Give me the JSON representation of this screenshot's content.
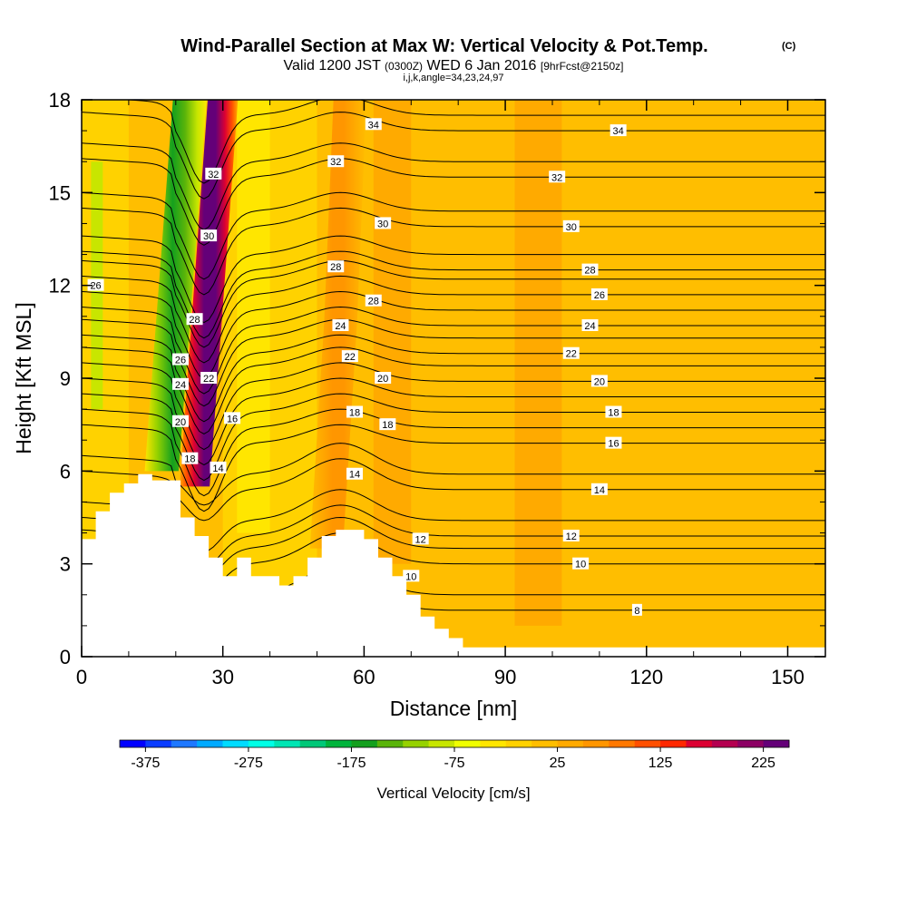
{
  "header": {
    "title": "Wind-Parallel Section at Max W: Vertical Velocity & Pot.Temp.",
    "copyright": "(C)",
    "valid_prefix": "Valid 1200 JST",
    "valid_utc": "(0300Z)",
    "valid_date": "WED 6 Jan 2016",
    "forecast": "[9hrFcst@2150z]",
    "params": "i,j,k,angle=34,23,24,97"
  },
  "chart_data": {
    "type": "heatmap",
    "xlabel": "Distance [nm]",
    "ylabel": "Height [Kft MSL]",
    "xlim": [
      0,
      158
    ],
    "ylim": [
      0,
      18
    ],
    "x_ticks": [
      "0",
      "30",
      "60",
      "90",
      "120",
      "150"
    ],
    "y_ticks": [
      "0",
      "3",
      "6",
      "9",
      "12",
      "15",
      "18"
    ],
    "x_tick_values": [
      0,
      30,
      60,
      90,
      120,
      150
    ],
    "y_tick_values": [
      0,
      3,
      6,
      9,
      12,
      15,
      18
    ],
    "grid": false,
    "fill_variable": "Vertical Velocity [cm/s]",
    "colorbar": {
      "label": "Vertical Velocity [cm/s]",
      "min": -400,
      "max": 250,
      "step": 25,
      "tick_labels": [
        "-375",
        "-275",
        "-175",
        "-75",
        "25",
        "125",
        "225"
      ],
      "tick_values": [
        -375,
        -275,
        -175,
        -75,
        25,
        125,
        225
      ],
      "colors": [
        "#0000ff",
        "#0a3cff",
        "#1e78ff",
        "#00aaff",
        "#00dcff",
        "#00ffe6",
        "#00e6b4",
        "#00c878",
        "#00b43c",
        "#14a01e",
        "#5ab40a",
        "#96d200",
        "#c8e600",
        "#f0ff00",
        "#ffe600",
        "#ffd200",
        "#ffbe00",
        "#ffaa00",
        "#ff9600",
        "#ff7800",
        "#ff5000",
        "#ff2800",
        "#dc0032",
        "#b40050",
        "#8c0064",
        "#640078"
      ]
    },
    "vertical_velocity_features": [
      {
        "name": "updraft core",
        "x_center": [
          24,
          27,
          30
        ],
        "y_range": [
          5.5,
          18
        ],
        "w_max": 250
      },
      {
        "name": "downdraft band",
        "x_center": [
          17,
          20,
          23
        ],
        "y_range": [
          6,
          18
        ],
        "w_min": -175
      },
      {
        "name": "secondary updraft",
        "x_center": [
          52,
          55,
          57
        ],
        "y_range": [
          3.5,
          18
        ],
        "w_max": 75
      }
    ],
    "terrain_profile": {
      "x": [
        0,
        3,
        3,
        6,
        6,
        9,
        9,
        12,
        12,
        15,
        15,
        19,
        19,
        21,
        21,
        24,
        24,
        27,
        27,
        30,
        30,
        33,
        33,
        36,
        36,
        39,
        39,
        42,
        42,
        45,
        45,
        48,
        48,
        51,
        51,
        54,
        54,
        57,
        57,
        60,
        60,
        63,
        63,
        66,
        66,
        69,
        69,
        72,
        72,
        75,
        75,
        78,
        78,
        81,
        81,
        84,
        84,
        158
      ],
      "y": [
        3.8,
        3.8,
        4.7,
        4.7,
        5.3,
        5.3,
        5.6,
        5.6,
        5.9,
        5.9,
        5.7,
        5.7,
        5.7,
        5.7,
        4.5,
        4.5,
        3.9,
        3.9,
        3.2,
        3.2,
        2.6,
        2.6,
        3.2,
        3.2,
        2.6,
        2.6,
        2.6,
        2.6,
        2.3,
        2.3,
        2.6,
        2.6,
        3.2,
        3.2,
        3.9,
        3.9,
        4.1,
        4.1,
        4.1,
        4.1,
        3.8,
        3.8,
        3.2,
        3.2,
        2.6,
        2.6,
        2.0,
        2.0,
        1.3,
        1.3,
        0.9,
        0.9,
        0.6,
        0.6,
        0.3,
        0.3,
        0.3,
        0.3
      ]
    },
    "theta_contours": {
      "variable": "Potential temperature (C)",
      "label_values": [
        "8",
        "10",
        "12",
        "14",
        "16",
        "18",
        "20",
        "22",
        "24",
        "26",
        "28",
        "30",
        "32",
        "34"
      ],
      "labels": [
        {
          "text": "34",
          "x": 62,
          "y": 17.2
        },
        {
          "text": "34",
          "x": 114,
          "y": 17.0
        },
        {
          "text": "32",
          "x": 28,
          "y": 15.6
        },
        {
          "text": "32",
          "x": 54,
          "y": 16.0
        },
        {
          "text": "32",
          "x": 101,
          "y": 15.5
        },
        {
          "text": "30",
          "x": 27,
          "y": 13.6
        },
        {
          "text": "30",
          "x": 64,
          "y": 14.0
        },
        {
          "text": "30",
          "x": 104,
          "y": 13.9
        },
        {
          "text": "28",
          "x": 24,
          "y": 10.9
        },
        {
          "text": "28",
          "x": 54,
          "y": 12.6
        },
        {
          "text": "28",
          "x": 62,
          "y": 11.5
        },
        {
          "text": "28",
          "x": 108,
          "y": 12.5
        },
        {
          "text": "26",
          "x": 3,
          "y": 12.0
        },
        {
          "text": "26",
          "x": 21,
          "y": 9.6
        },
        {
          "text": "26",
          "x": 110,
          "y": 11.7
        },
        {
          "text": "24",
          "x": 21,
          "y": 8.8
        },
        {
          "text": "24",
          "x": 55,
          "y": 10.7
        },
        {
          "text": "24",
          "x": 108,
          "y": 10.7
        },
        {
          "text": "22",
          "x": 27,
          "y": 9.0
        },
        {
          "text": "22",
          "x": 57,
          "y": 9.7
        },
        {
          "text": "22",
          "x": 104,
          "y": 9.8
        },
        {
          "text": "20",
          "x": 21,
          "y": 7.6
        },
        {
          "text": "20",
          "x": 64,
          "y": 9.0
        },
        {
          "text": "20",
          "x": 110,
          "y": 8.9
        },
        {
          "text": "18",
          "x": 23,
          "y": 6.4
        },
        {
          "text": "18",
          "x": 58,
          "y": 7.9
        },
        {
          "text": "18",
          "x": 65,
          "y": 7.5
        },
        {
          "text": "18",
          "x": 113,
          "y": 7.9
        },
        {
          "text": "16",
          "x": 32,
          "y": 7.7
        },
        {
          "text": "16",
          "x": 113,
          "y": 6.9
        },
        {
          "text": "14",
          "x": 29,
          "y": 6.1
        },
        {
          "text": "14",
          "x": 58,
          "y": 5.9
        },
        {
          "text": "14",
          "x": 110,
          "y": 5.4
        },
        {
          "text": "12",
          "x": 72,
          "y": 3.8
        },
        {
          "text": "12",
          "x": 104,
          "y": 3.9
        },
        {
          "text": "10",
          "x": 70,
          "y": 2.6
        },
        {
          "text": "10",
          "x": 106,
          "y": 3.0
        },
        {
          "text": "8",
          "x": 118,
          "y": 1.5
        }
      ]
    }
  }
}
